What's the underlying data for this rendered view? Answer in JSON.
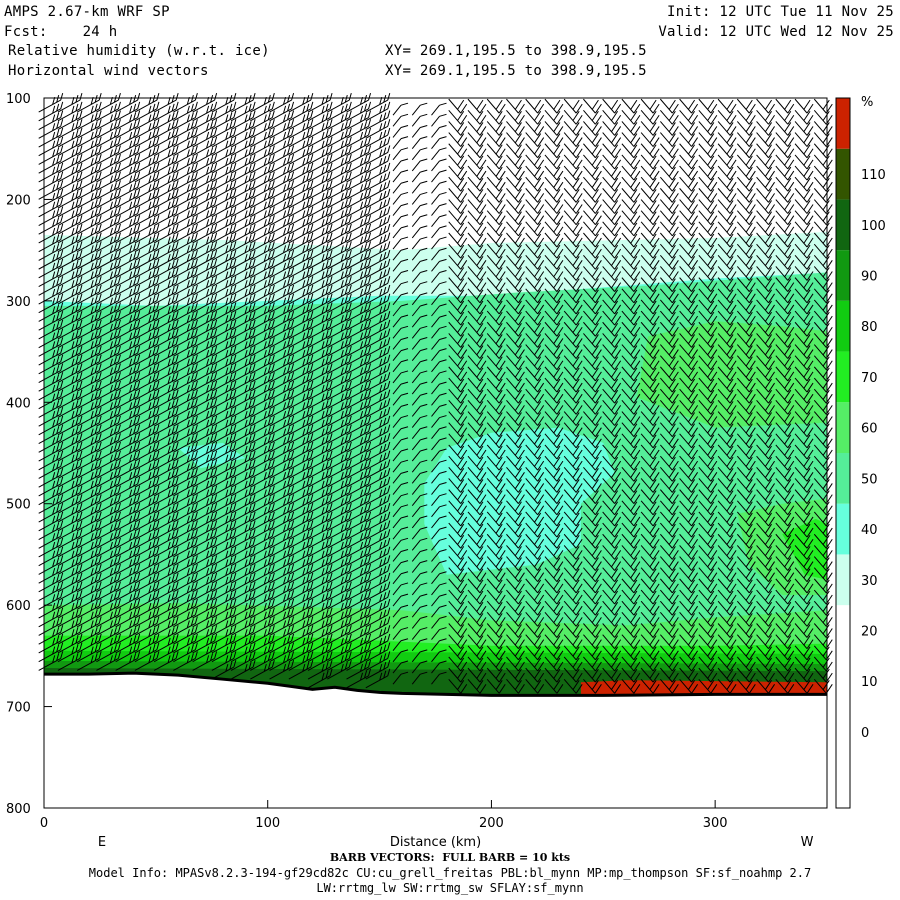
{
  "header": {
    "model": "AMPS 2.67-km WRF SP",
    "fcst_label": "Fcst:",
    "fcst_value": "24 h",
    "init": "Init: 12 UTC Tue 11 Nov 25",
    "valid": "Valid: 12 UTC Wed 12 Nov 25",
    "field1": "Relative humidity (w.r.t. ice)",
    "field2": "Horizontal wind vectors",
    "xy1": "XY= 269.1,195.5 to 398.9,195.5",
    "xy2": "XY= 269.1,195.5 to 398.9,195.5"
  },
  "footer": {
    "barb_note": "BARB VECTORS:  FULL BARB = 10 kts",
    "model_info": "Model Info: MPASv8.2.3-194-gf29cd82c CU:cu_grell_freitas PBL:bl_mynn MP:mp_thompson SF:sf_noahmp 2.7",
    "model_info2": "LW:rrtmg_lw SW:rrtmg_sw SFLAY:sf_mynn"
  },
  "colors": {
    "rh_bins": [
      "#ffffff",
      "#ffffff",
      "#ffffff",
      "#ffffff",
      "#ccffee",
      "#66ffdd",
      "#55ee99",
      "#55ee66",
      "#22ee22",
      "#11cc11",
      "#119911",
      "#116611",
      "#335500",
      "#cc2200"
    ],
    "terrain": "#000000",
    "barb": "#000000"
  },
  "chart_data": {
    "type": "cross-section",
    "title": "Relative humidity (w.r.t. ice)",
    "xlabel": "Distance (km)",
    "ylabel": "",
    "xlim": [
      0,
      350
    ],
    "ylim": [
      100,
      800
    ],
    "y_inverted": true,
    "x_ticks": [
      0,
      100,
      200,
      300
    ],
    "y_ticks": [
      100,
      200,
      300,
      400,
      500,
      600,
      700,
      800
    ],
    "end_labels": {
      "left": "E",
      "right": "W"
    },
    "colorbar": {
      "unit": "%",
      "labels": [
        0,
        10,
        20,
        30,
        40,
        50,
        60,
        70,
        80,
        90,
        100,
        110
      ]
    },
    "terrain_surface": {
      "x": [
        0,
        20,
        40,
        60,
        80,
        100,
        110,
        120,
        130,
        140,
        150,
        160,
        180,
        200,
        250,
        300,
        350
      ],
      "pressure": [
        668,
        668,
        667,
        669,
        673,
        677,
        680,
        683,
        681,
        684,
        686,
        687,
        688,
        689,
        689,
        688,
        688
      ]
    },
    "wind_barbs": "columns of barbs approx every 8-9 km, full barb = 10 kts"
  }
}
